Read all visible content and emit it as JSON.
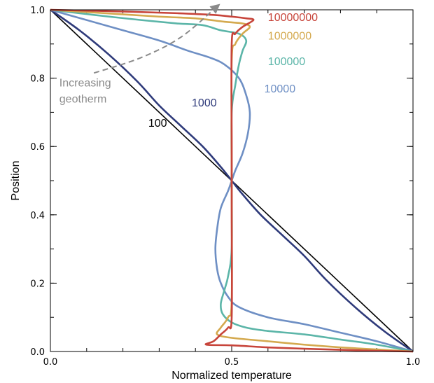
{
  "chart_data": {
    "type": "line",
    "xlabel": "Normalized temperature",
    "ylabel": "Position",
    "xlim": [
      0,
      1
    ],
    "ylim": [
      0,
      1
    ],
    "grid": false,
    "x_ticks": [
      {
        "value": 0.0,
        "label": "0.0"
      },
      {
        "value": 0.5,
        "label": "0.5"
      },
      {
        "value": 1.0,
        "label": "1.0"
      }
    ],
    "y_ticks": [
      {
        "value": 0.0,
        "label": "0.0"
      },
      {
        "value": 0.2,
        "label": "0.2"
      },
      {
        "value": 0.4,
        "label": "0.4"
      },
      {
        "value": 0.6,
        "label": "0.6"
      },
      {
        "value": 0.8,
        "label": "0.8"
      },
      {
        "value": 1.0,
        "label": "1.0"
      }
    ],
    "series": [
      {
        "name": "100",
        "label": "100",
        "color": "#000000",
        "points": [
          [
            0,
            1
          ],
          [
            1,
            0
          ]
        ]
      },
      {
        "name": "1000",
        "label": "1000",
        "color": "#2e3a7a",
        "points": [
          [
            0,
            1
          ],
          [
            0.08,
            0.94
          ],
          [
            0.16,
            0.87
          ],
          [
            0.24,
            0.79
          ],
          [
            0.3,
            0.72
          ],
          [
            0.36,
            0.66
          ],
          [
            0.42,
            0.6
          ],
          [
            0.47,
            0.54
          ],
          [
            0.5,
            0.5
          ],
          [
            0.53,
            0.46
          ],
          [
            0.58,
            0.4
          ],
          [
            0.64,
            0.34
          ],
          [
            0.7,
            0.28
          ],
          [
            0.76,
            0.21
          ],
          [
            0.84,
            0.13
          ],
          [
            0.92,
            0.06
          ],
          [
            1,
            0
          ]
        ]
      },
      {
        "name": "10000",
        "label": "10000",
        "color": "#6e8fc4",
        "points": [
          [
            0,
            1
          ],
          [
            0.1,
            0.97
          ],
          [
            0.2,
            0.94
          ],
          [
            0.3,
            0.91
          ],
          [
            0.38,
            0.88
          ],
          [
            0.44,
            0.86
          ],
          [
            0.48,
            0.84
          ],
          [
            0.52,
            0.8
          ],
          [
            0.54,
            0.75
          ],
          [
            0.55,
            0.7
          ],
          [
            0.545,
            0.64
          ],
          [
            0.53,
            0.58
          ],
          [
            0.51,
            0.53
          ],
          [
            0.5,
            0.5
          ],
          [
            0.49,
            0.47
          ],
          [
            0.47,
            0.42
          ],
          [
            0.46,
            0.36
          ],
          [
            0.455,
            0.3
          ],
          [
            0.46,
            0.24
          ],
          [
            0.47,
            0.2
          ],
          [
            0.49,
            0.16
          ],
          [
            0.52,
            0.13
          ],
          [
            0.6,
            0.1
          ],
          [
            0.7,
            0.08
          ],
          [
            0.8,
            0.055
          ],
          [
            0.9,
            0.03
          ],
          [
            1,
            0
          ]
        ]
      },
      {
        "name": "100000",
        "label": "100000",
        "color": "#5bb5a8",
        "points": [
          [
            0,
            1
          ],
          [
            0.12,
            0.985
          ],
          [
            0.25,
            0.97
          ],
          [
            0.35,
            0.96
          ],
          [
            0.42,
            0.955
          ],
          [
            0.47,
            0.94
          ],
          [
            0.52,
            0.93
          ],
          [
            0.54,
            0.91
          ],
          [
            0.53,
            0.88
          ],
          [
            0.52,
            0.84
          ],
          [
            0.51,
            0.78
          ],
          [
            0.5,
            0.7
          ],
          [
            0.5,
            0.5
          ],
          [
            0.5,
            0.3
          ],
          [
            0.49,
            0.22
          ],
          [
            0.48,
            0.18
          ],
          [
            0.47,
            0.14
          ],
          [
            0.475,
            0.11
          ],
          [
            0.5,
            0.085
          ],
          [
            0.54,
            0.07
          ],
          [
            0.6,
            0.06
          ],
          [
            0.7,
            0.05
          ],
          [
            0.8,
            0.035
          ],
          [
            0.9,
            0.02
          ],
          [
            1,
            0
          ]
        ]
      },
      {
        "name": "1000000",
        "label": "1000000",
        "color": "#d4a94e",
        "points": [
          [
            0,
            1
          ],
          [
            0.15,
            0.99
          ],
          [
            0.3,
            0.98
          ],
          [
            0.4,
            0.975
          ],
          [
            0.48,
            0.965
          ],
          [
            0.53,
            0.96
          ],
          [
            0.55,
            0.95
          ],
          [
            0.53,
            0.93
          ],
          [
            0.51,
            0.9
          ],
          [
            0.5,
            0.85
          ],
          [
            0.5,
            0.5
          ],
          [
            0.5,
            0.15
          ],
          [
            0.49,
            0.1
          ],
          [
            0.47,
            0.07
          ],
          [
            0.46,
            0.05
          ],
          [
            0.5,
            0.04
          ],
          [
            0.6,
            0.03
          ],
          [
            0.7,
            0.02
          ],
          [
            0.8,
            0.012
          ],
          [
            0.9,
            0.006
          ],
          [
            1,
            0
          ]
        ]
      },
      {
        "name": "10000000",
        "label": "10000000",
        "color": "#c7443a",
        "points": [
          [
            0,
            1
          ],
          [
            0.2,
            0.995
          ],
          [
            0.35,
            0.99
          ],
          [
            0.45,
            0.985
          ],
          [
            0.5,
            0.98
          ],
          [
            0.54,
            0.975
          ],
          [
            0.56,
            0.97
          ],
          [
            0.53,
            0.95
          ],
          [
            0.51,
            0.93
          ],
          [
            0.5,
            0.9
          ],
          [
            0.5,
            0.6
          ],
          [
            0.5,
            0.4
          ],
          [
            0.5,
            0.1
          ],
          [
            0.49,
            0.07
          ],
          [
            0.47,
            0.05
          ],
          [
            0.45,
            0.03
          ],
          [
            0.43,
            0.02
          ],
          [
            0.5,
            0.018
          ],
          [
            0.6,
            0.012
          ],
          [
            0.7,
            0.008
          ],
          [
            0.8,
            0.005
          ],
          [
            0.9,
            0.002
          ],
          [
            1,
            0
          ]
        ]
      }
    ],
    "series_label_positions": [
      {
        "series": "100",
        "x": 0.27,
        "y": 0.67
      },
      {
        "series": "1000",
        "x": 0.39,
        "y": 0.73
      },
      {
        "series": "10000",
        "x": 0.59,
        "y": 0.77
      },
      {
        "series": "100000",
        "x": 0.6,
        "y": 0.85
      },
      {
        "series": "1000000",
        "x": 0.6,
        "y": 0.925
      },
      {
        "series": "10000000",
        "x": 0.6,
        "y": 0.98
      }
    ],
    "annotation": {
      "lines": [
        "Increasing",
        "geotherm"
      ],
      "color": "#8a8a8a",
      "arrow_points": [
        [
          0.12,
          0.815
        ],
        [
          0.25,
          0.86
        ],
        [
          0.36,
          0.92
        ],
        [
          0.46,
          1.01
        ]
      ],
      "text_anchor": [
        0.015,
        0.8
      ]
    }
  }
}
